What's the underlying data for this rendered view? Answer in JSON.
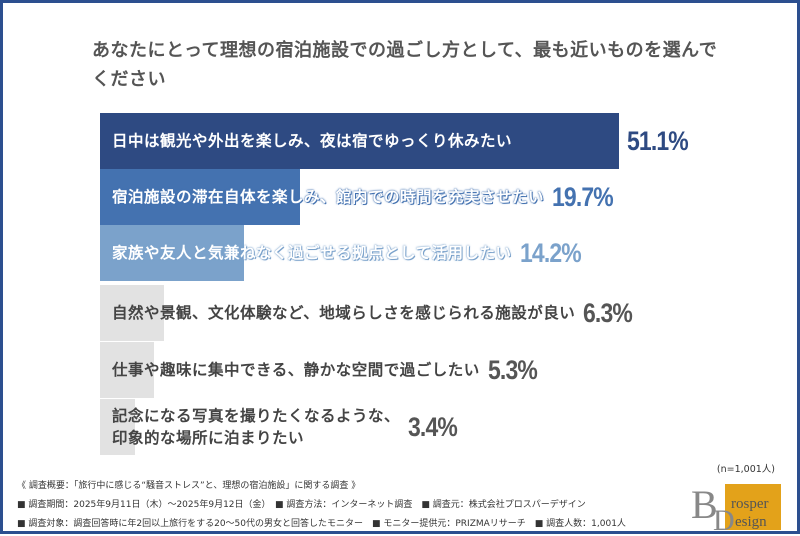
{
  "title": "あなたにとって理想の宿泊施設での過ごし方として、最も近いものを選んでください",
  "chart_data": {
    "type": "bar",
    "orientation": "horizontal",
    "title": "あなたにとって理想の宿泊施設での過ごし方として、最も近いものを選んでください",
    "categories": [
      "日中は観光や外出を楽しみ、夜は宿でゆっくり休みたい",
      "宿泊施設の滞在自体を楽しみ、館内での時間を充実させたい",
      "家族や友人と気兼ねなく過ごせる拠点として活用したい",
      "自然や景観、文化体験など、地域らしさを感じられる施設が良い",
      "仕事や趣味に集中できる、静かな空間で過ごしたい",
      "記念になる写真を撮りたくなるような、\n印象的な場所に泊まりたい"
    ],
    "values": [
      51.1,
      19.7,
      14.2,
      6.3,
      5.3,
      3.4
    ],
    "value_labels": [
      "51.1%",
      "19.7%",
      "14.2%",
      "6.3%",
      "5.3%",
      "3.4%"
    ],
    "unit": "%",
    "bar_colors": [
      "#2e4a82",
      "#4472b0",
      "#7ba2cb",
      "#e2e2e2",
      "#e2e2e2",
      "#e2e2e2"
    ],
    "value_colors": [
      "#2e4a82",
      "#4472b0",
      "#7ba2cb",
      "#555555",
      "#555555",
      "#555555"
    ],
    "grid": false
  },
  "sample": "(n=1,001人)",
  "footer": {
    "heading": "《 調査概要：「旅行中に感じる“騒音ストレス”と、理想の宿泊施設」に関する調査 》",
    "line1": "■ 調査期間：2025年9月11日（木）～2025年9月12日（金）　■ 調査方法：インターネット調査　■ 調査元：株式会社プロスパーデザイン",
    "line2": "■ 調査対象：調査回答時に年2回以上旅行をする20～50代の男女と回答したモニター　■ モニター提供元：PRIZMAリサーチ　■ 調査人数：1,001人"
  },
  "logo": {
    "text1": "rosper",
    "text2": "esign",
    "accent": "#e3a21a"
  }
}
